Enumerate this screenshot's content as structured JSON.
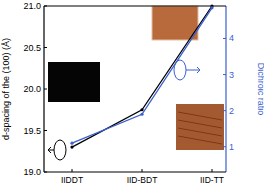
{
  "chart_data": {
    "type": "line",
    "categories": [
      "IIDDT",
      "IID-BDT",
      "IID-TT"
    ],
    "y_label": "d-spacing of the (100) (Å)",
    "y2_label": "Dichroic ratio",
    "ylim": [
      19.0,
      21.0
    ],
    "yticks": [
      {
        "value": 19.0,
        "label": "19.0"
      },
      19.5,
      {
        "value": 20.0,
        "label": "20.0"
      },
      20.5,
      {
        "value": 21.0,
        "label": "21.0"
      }
    ],
    "y2lim": [
      0.3,
      4.9
    ],
    "y2ticks": [
      1,
      2,
      3,
      4
    ],
    "series": [
      {
        "name": "d-spacing",
        "color": "#000000",
        "values": [
          19.3,
          19.75,
          21.0
        ],
        "marker": "circle"
      },
      {
        "name": "Dichroic ratio",
        "color": "#3a5fd0",
        "values": [
          1.1,
          1.9,
          4.85
        ],
        "axis": "y2",
        "marker": "circle"
      }
    ]
  }
}
